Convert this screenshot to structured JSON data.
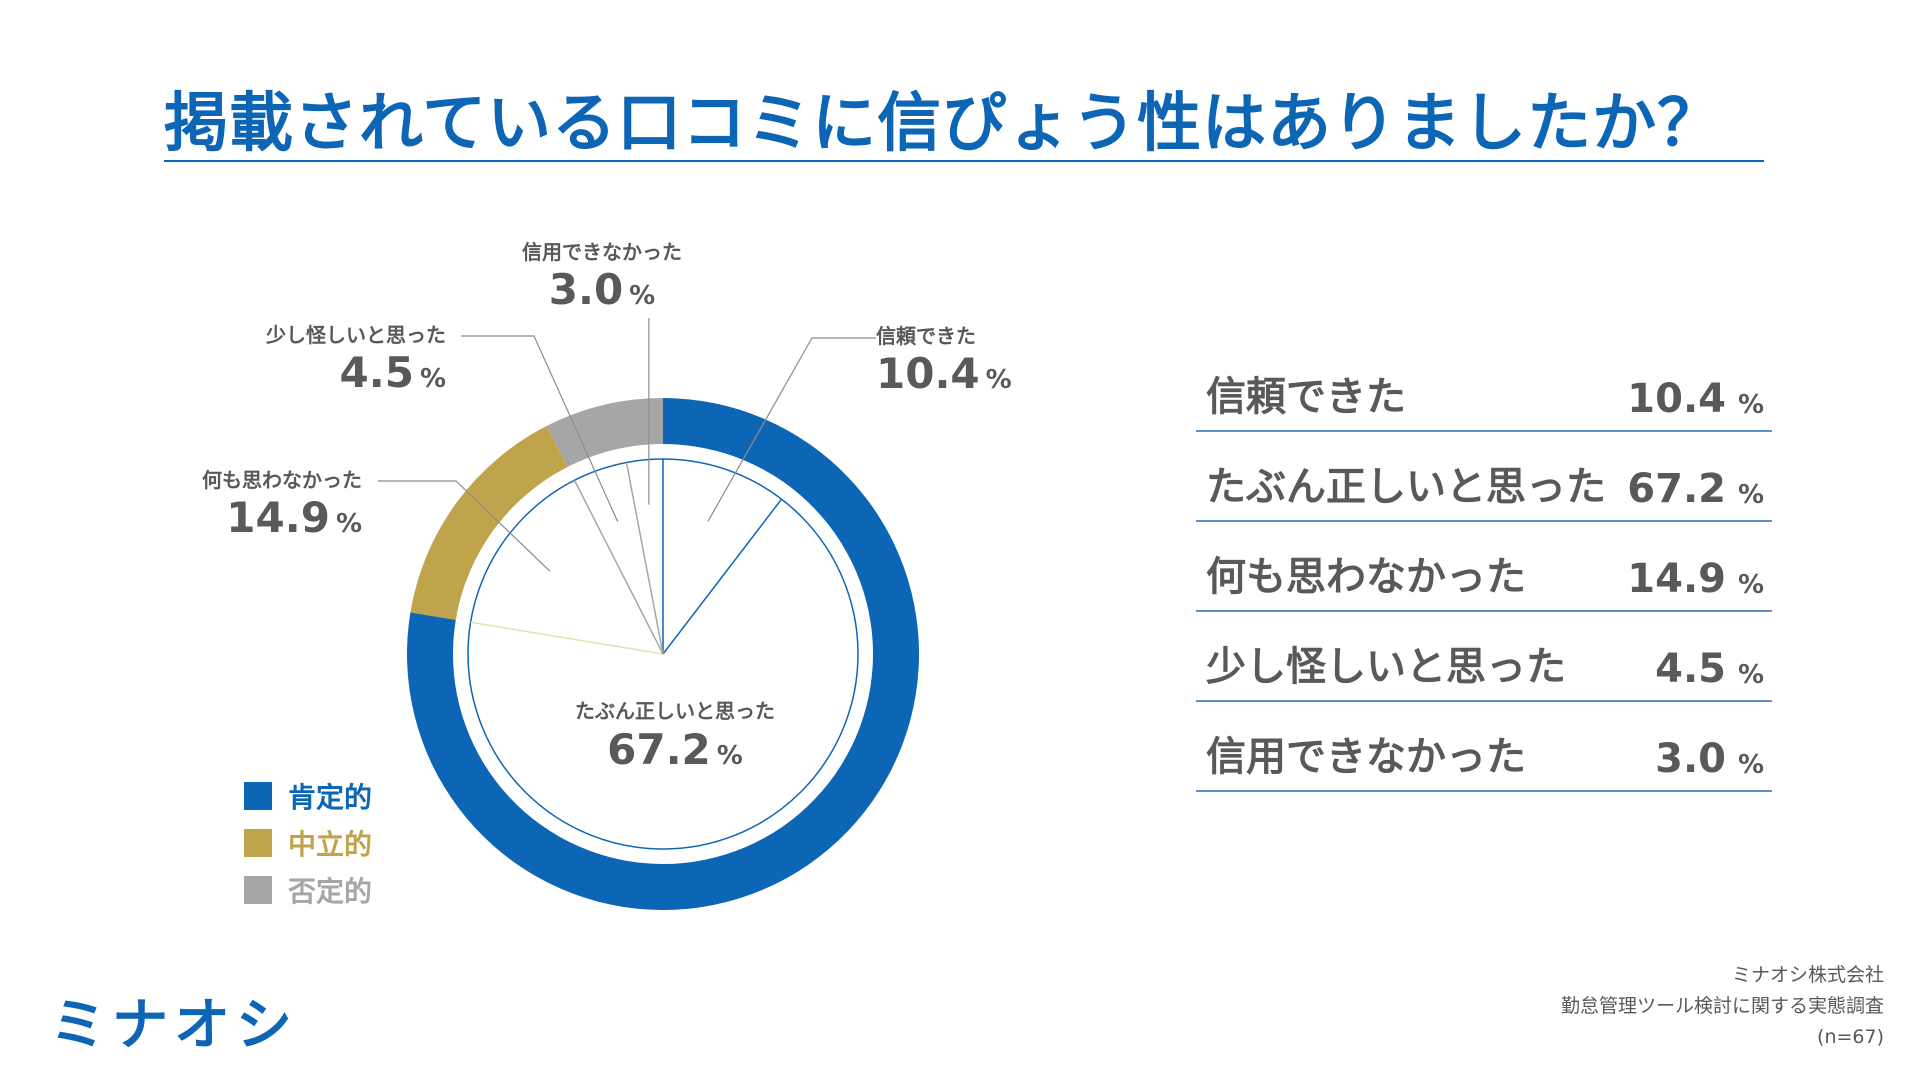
{
  "page": {
    "title": "掲載されている口コミに信ぴょう性はありましたか？",
    "logo": "ミナオシ",
    "footer": {
      "company": "ミナオシ株式会社",
      "survey": "勤怠管理ツール検討に関する実態調査",
      "sample": "(n=67)"
    }
  },
  "chart_data": {
    "type": "pie",
    "title": "掲載されている口コミに信ぴょう性はありましたか？",
    "unit": "%",
    "slices": [
      {
        "label": "信頼できた",
        "value": 10.4,
        "display": "10.4",
        "group": "positive"
      },
      {
        "label": "たぶん正しいと思った",
        "value": 67.2,
        "display": "67.2",
        "group": "positive"
      },
      {
        "label": "何も思わなかった",
        "value": 14.9,
        "display": "14.9",
        "group": "neutral"
      },
      {
        "label": "少し怪しいと思った",
        "value": 4.5,
        "display": "4.5",
        "group": "negative"
      },
      {
        "label": "信用できなかった",
        "value": 3.0,
        "display": "3.0",
        "group": "negative"
      }
    ],
    "outer_ring": [
      {
        "label": "肯定的",
        "value": 77.6,
        "color": "#0d65b5"
      },
      {
        "label": "中立的",
        "value": 14.9,
        "color": "#c0a44c"
      },
      {
        "label": "否定的",
        "value": 7.5,
        "color": "#a6a6a6"
      }
    ],
    "inner_line_colors": {
      "positive": "#0d65b5",
      "neutral": "#e3e3a7",
      "negative": "#a6a6a6"
    },
    "legend": [
      {
        "label": "肯定的",
        "color": "#0d65b5"
      },
      {
        "label": "中立的",
        "color": "#c0a44c"
      },
      {
        "label": "否定的",
        "color": "#a6a6a6"
      }
    ]
  }
}
